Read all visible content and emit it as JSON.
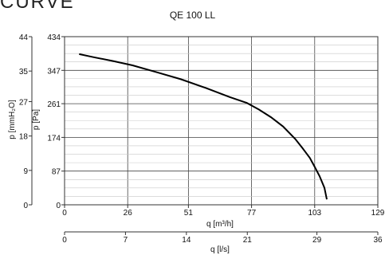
{
  "page": {
    "heading": "CURVE"
  },
  "chart_data": {
    "type": "line",
    "title": "QE 100 LL",
    "xlabel": "q [m³/h]",
    "x2label": "q [l/s]",
    "ylabel": "p [Pa]",
    "y2label": "p [mmH₂O]",
    "xlim": [
      0,
      129
    ],
    "ylim": [
      0,
      434
    ],
    "x2lim": [
      0,
      36
    ],
    "y2lim": [
      0,
      44
    ],
    "x_ticks": [
      0,
      26,
      51,
      77,
      103,
      129
    ],
    "y_ticks": [
      0,
      87,
      174,
      261,
      347,
      434
    ],
    "x2_ticks": [
      0,
      7,
      14,
      21,
      29,
      36
    ],
    "y2_ticks": [
      0,
      9,
      18,
      27,
      35,
      44
    ],
    "grid": true,
    "series": [
      {
        "x": [
          6,
          12,
          20,
          28,
          38,
          48,
          58,
          68,
          75,
          80,
          85,
          90,
          95,
          98,
          101,
          103,
          105,
          107,
          108
        ],
        "y": [
          389,
          381,
          371,
          360,
          342,
          324,
          302,
          278,
          263,
          246,
          226,
          202,
          170,
          146,
          121,
          98,
          74,
          44,
          14
        ]
      }
    ]
  }
}
